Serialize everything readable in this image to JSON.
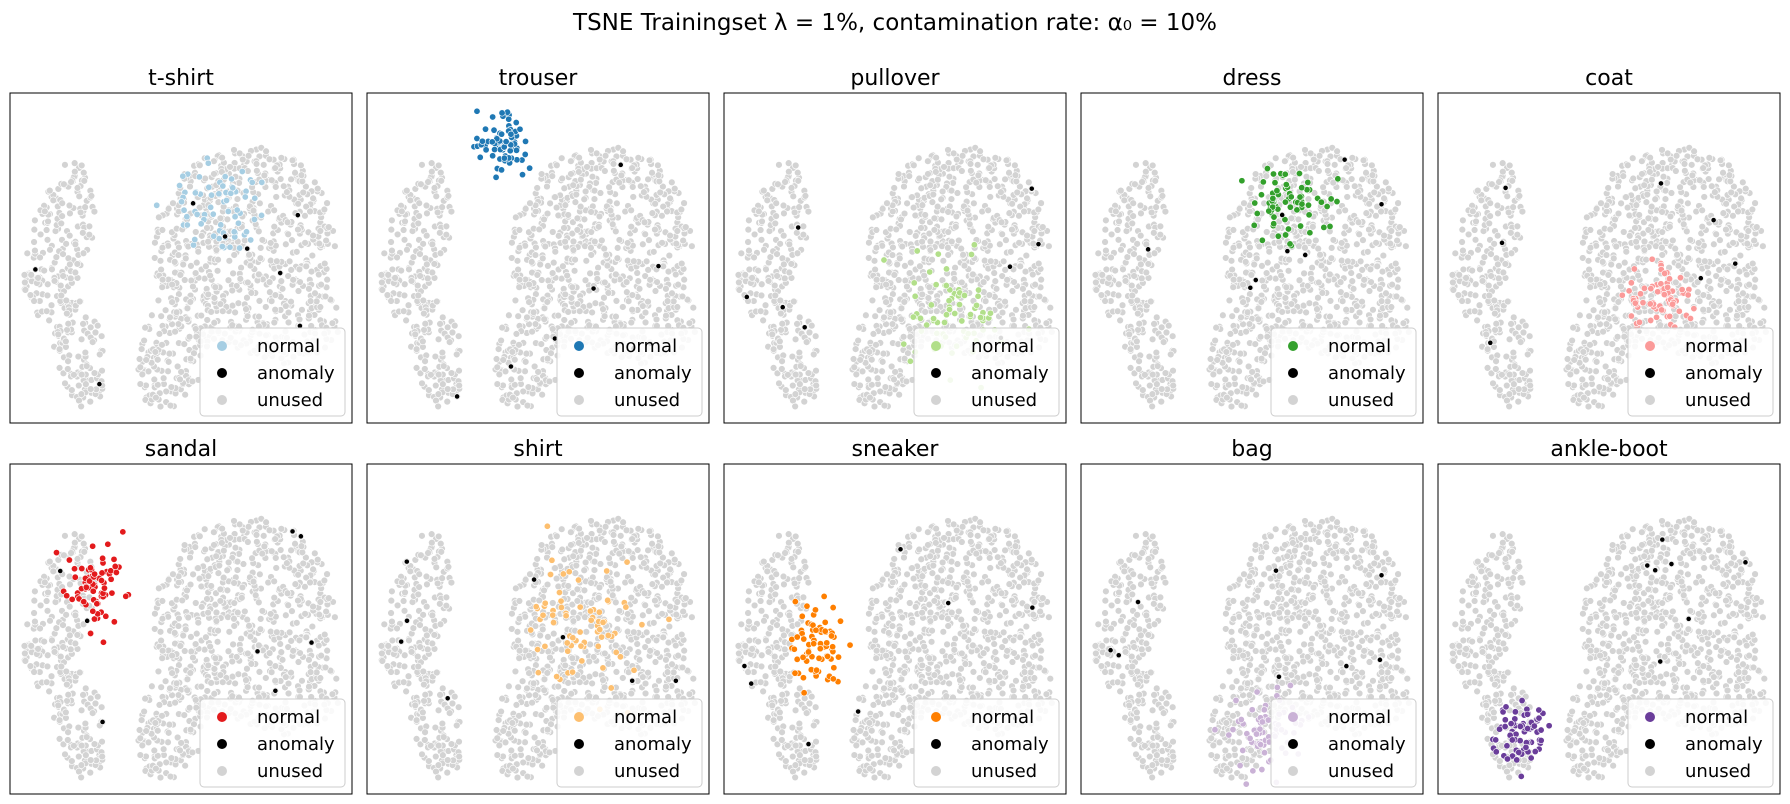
{
  "figure": {
    "title": "TSNE Trainingset λ = 1%, contamination rate:  α₀ = 10%"
  },
  "legend_labels": [
    "normal",
    "anomaly",
    "unused"
  ],
  "colors": {
    "unused": "#d3d3d3",
    "anomaly": "#000000",
    "frame": "#000000"
  },
  "chart_data": [
    {
      "type": "scatter",
      "title": "t-shirt",
      "normal_color": "#a6cee3",
      "normal_region": "upper-right lobe",
      "legend": "lower-right",
      "grid": false
    },
    {
      "type": "scatter",
      "title": "trouser",
      "normal_color": "#1f78b4",
      "normal_region": "top-left island",
      "legend": "lower-right",
      "grid": false
    },
    {
      "type": "scatter",
      "title": "pullover",
      "normal_color": "#b2df8a",
      "normal_region": "lower-right lobe",
      "legend": "lower-right",
      "grid": false
    },
    {
      "type": "scatter",
      "title": "dress",
      "normal_color": "#33a02c",
      "normal_region": "upper-center",
      "legend": "lower-right",
      "grid": false
    },
    {
      "type": "scatter",
      "title": "coat",
      "normal_color": "#fb9a99",
      "normal_region": "right-center",
      "legend": "lower-right",
      "grid": false
    },
    {
      "type": "scatter",
      "title": "sandal",
      "normal_color": "#e31a1c",
      "normal_region": "left lobe",
      "legend": "lower-right",
      "grid": false
    },
    {
      "type": "scatter",
      "title": "shirt",
      "normal_color": "#fdbf6f",
      "normal_region": "right lobe, scattered",
      "legend": "lower-right",
      "grid": false
    },
    {
      "type": "scatter",
      "title": "sneaker",
      "normal_color": "#ff7f00",
      "normal_region": "left lobe, lower",
      "legend": "lower-right",
      "grid": false
    },
    {
      "type": "scatter",
      "title": "bag",
      "normal_color": "#cab2d6",
      "normal_region": "bottom-center lobe",
      "legend": "lower-right",
      "grid": false
    },
    {
      "type": "scatter",
      "title": "ankle-boot",
      "normal_color": "#6a3d9a",
      "normal_region": "bottom-left lobe",
      "legend": "lower-right",
      "grid": false
    }
  ]
}
